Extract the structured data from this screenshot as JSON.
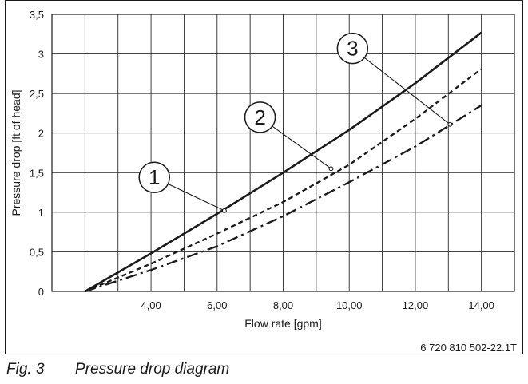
{
  "chart_data": {
    "type": "line",
    "xlabel": "Flow rate [gpm]",
    "ylabel": "Pressure drop [ft of head]",
    "xlim": [
      1.0,
      15.0
    ],
    "ylim": [
      0,
      3.5
    ],
    "x_ticks": [
      2,
      3,
      4,
      5,
      6,
      7,
      8,
      9,
      10,
      11,
      12,
      13,
      14,
      15
    ],
    "x_tick_labels": [
      {
        "value": 4,
        "label": "4,00"
      },
      {
        "value": 6,
        "label": "6,00"
      },
      {
        "value": 8,
        "label": "8,00"
      },
      {
        "value": 10,
        "label": "10,00"
      },
      {
        "value": 12,
        "label": "12,00"
      },
      {
        "value": 14,
        "label": "14,00"
      }
    ],
    "y_ticks": [
      {
        "value": 0,
        "label": "0"
      },
      {
        "value": 0.5,
        "label": "0,5"
      },
      {
        "value": 1,
        "label": "1"
      },
      {
        "value": 1.5,
        "label": "1,5"
      },
      {
        "value": 2,
        "label": "2"
      },
      {
        "value": 2.5,
        "label": "2,5"
      },
      {
        "value": 3,
        "label": "3"
      },
      {
        "value": 3.5,
        "label": "3,5"
      }
    ],
    "grid": true,
    "series": [
      {
        "name": "1",
        "style": "solid",
        "x": [
          2.0,
          4.0,
          6.0,
          8.0,
          10.0,
          12.0,
          14.0
        ],
        "y": [
          0.0,
          0.48,
          0.98,
          1.5,
          2.04,
          2.63,
          3.27
        ]
      },
      {
        "name": "2",
        "style": "dashed",
        "x": [
          2.0,
          4.0,
          6.0,
          8.0,
          10.0,
          12.0,
          14.0
        ],
        "y": [
          0.0,
          0.35,
          0.73,
          1.13,
          1.6,
          2.18,
          2.81
        ]
      },
      {
        "name": "3",
        "style": "dashdot",
        "x": [
          2.0,
          4.0,
          6.0,
          8.0,
          10.0,
          12.0,
          14.0
        ],
        "y": [
          0.0,
          0.27,
          0.57,
          0.95,
          1.38,
          1.83,
          2.35
        ]
      }
    ],
    "callouts": [
      {
        "label": "1",
        "series": "1",
        "at_x": 6.22,
        "at_y": 1.02,
        "bubble_x": 4.1,
        "bubble_y": 1.44
      },
      {
        "label": "2",
        "series": "2",
        "at_x": 9.45,
        "at_y": 1.55,
        "bubble_x": 7.3,
        "bubble_y": 2.2
      },
      {
        "label": "3",
        "series": "3",
        "at_x": 13.05,
        "at_y": 2.11,
        "bubble_x": 10.1,
        "bubble_y": 3.07
      }
    ]
  },
  "figure_code": "6 720 810 502-22.1T",
  "caption": {
    "number": "Fig. 3",
    "title": "Pressure drop diagram"
  }
}
